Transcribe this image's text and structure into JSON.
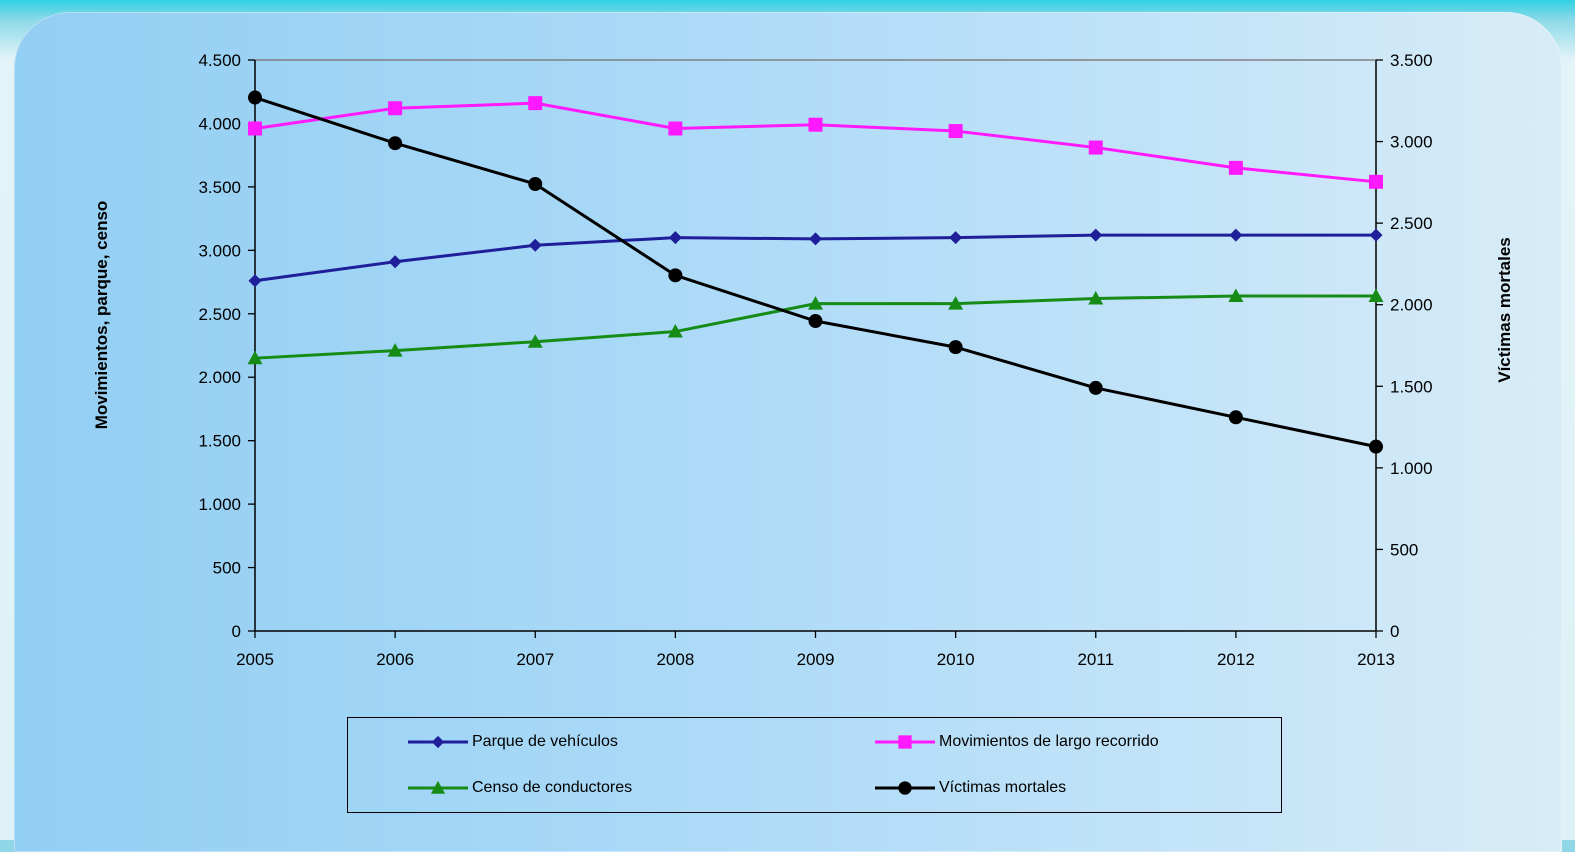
{
  "chart_data": {
    "type": "line",
    "x": [
      "2005",
      "2006",
      "2007",
      "2008",
      "2009",
      "2010",
      "2011",
      "2012",
      "2013"
    ],
    "y_left": {
      "label": "Movimientos, parque, censo",
      "range": [
        0,
        4500
      ],
      "ticks": [
        "0",
        "500",
        "1.000",
        "1.500",
        "2.000",
        "2.500",
        "3.000",
        "3.500",
        "4.000",
        "4.500"
      ],
      "tick_values": [
        0,
        500,
        1000,
        1500,
        2000,
        2500,
        3000,
        3500,
        4000,
        4500
      ]
    },
    "y_right": {
      "label": "Víctimas mortales",
      "range": [
        0,
        3500
      ],
      "ticks": [
        "0",
        "500",
        "1.000",
        "1.500",
        "2.000",
        "2.500",
        "3.000",
        "3.500"
      ],
      "tick_values": [
        0,
        500,
        1000,
        1500,
        2000,
        2500,
        3000,
        3500
      ]
    },
    "series": [
      {
        "name": "Parque de vehículos",
        "axis": "left",
        "color": "#1f1f99",
        "marker": "diamond",
        "values": [
          2760,
          2910,
          3040,
          3100,
          3090,
          3100,
          3120,
          3120,
          3120
        ]
      },
      {
        "name": "Movimientos de largo recorrido",
        "axis": "left",
        "color": "#ff19ff",
        "marker": "square",
        "values": [
          3960,
          4120,
          4160,
          3960,
          3990,
          3940,
          3810,
          3650,
          3540
        ]
      },
      {
        "name": "Censo de conductores",
        "axis": "left",
        "color": "#168c16",
        "marker": "triangle",
        "values": [
          2150,
          2210,
          2280,
          2360,
          2580,
          2580,
          2620,
          2640,
          2640
        ]
      },
      {
        "name": "Víctimas mortales",
        "axis": "right",
        "color": "#000000",
        "marker": "circle",
        "values": [
          3270,
          2990,
          2740,
          2180,
          1900,
          1740,
          1490,
          1310,
          1130
        ]
      }
    ],
    "grid": false,
    "legend_position": "bottom"
  }
}
